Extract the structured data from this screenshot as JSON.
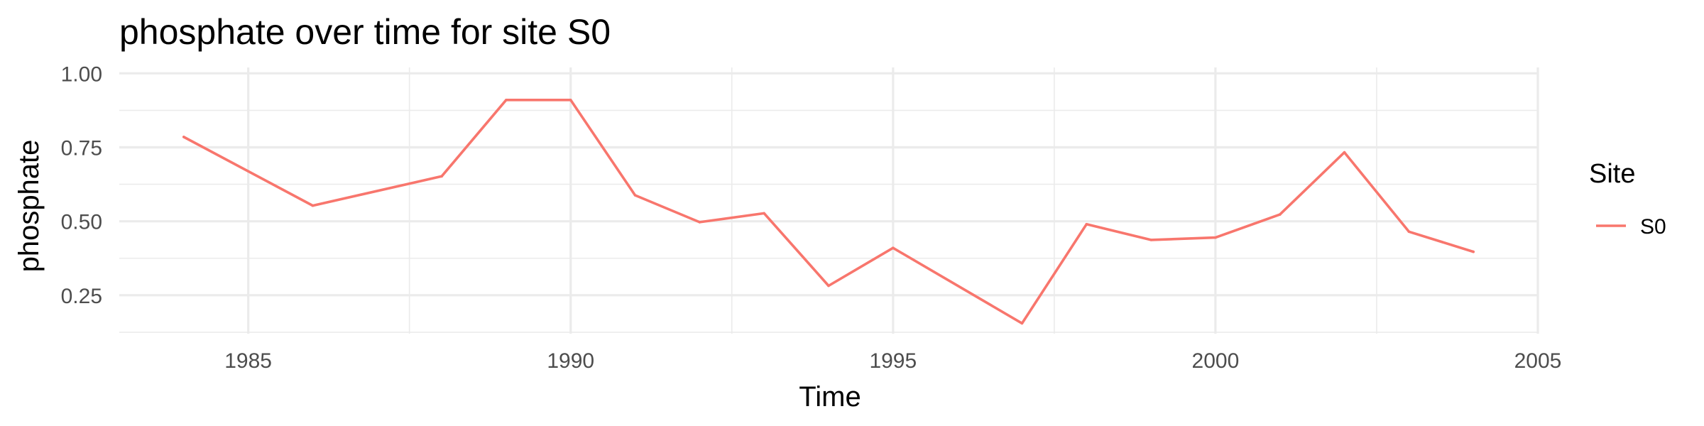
{
  "chart_data": {
    "type": "line",
    "title": "phosphate over time for site S0",
    "xlabel": "Time",
    "ylabel": "phosphate",
    "x": [
      1984,
      1986,
      1988,
      1989,
      1990,
      1991,
      1992,
      1993,
      1994,
      1995,
      1997,
      1998,
      1999,
      2000,
      2001,
      2002,
      2003,
      2004
    ],
    "series": [
      {
        "name": "S0",
        "color": "#F8766D",
        "values": [
          0.785,
          0.553,
          0.652,
          0.91,
          0.91,
          0.588,
          0.497,
          0.527,
          0.282,
          0.41,
          0.155,
          0.49,
          0.437,
          0.445,
          0.523,
          0.733,
          0.465,
          0.397
        ]
      }
    ],
    "xlim": [
      1983,
      2005
    ],
    "ylim": [
      0.12,
      1.02
    ],
    "x_ticks": [
      1985,
      1990,
      1995,
      2000,
      2005
    ],
    "y_ticks": [
      0.25,
      0.5,
      0.75,
      1.0
    ],
    "x_tick_labels": [
      "1985",
      "1990",
      "1995",
      "2000",
      "2005"
    ],
    "y_tick_labels": [
      "0.25",
      "0.50",
      "0.75",
      "1.00"
    ],
    "x_minor_ticks": [
      1987.5,
      1992.5,
      1997.5,
      2002.5
    ],
    "y_minor_ticks": [
      0.125,
      0.375,
      0.625,
      0.875
    ],
    "grid": true,
    "legend": {
      "title": "Site",
      "placement": "right"
    }
  }
}
